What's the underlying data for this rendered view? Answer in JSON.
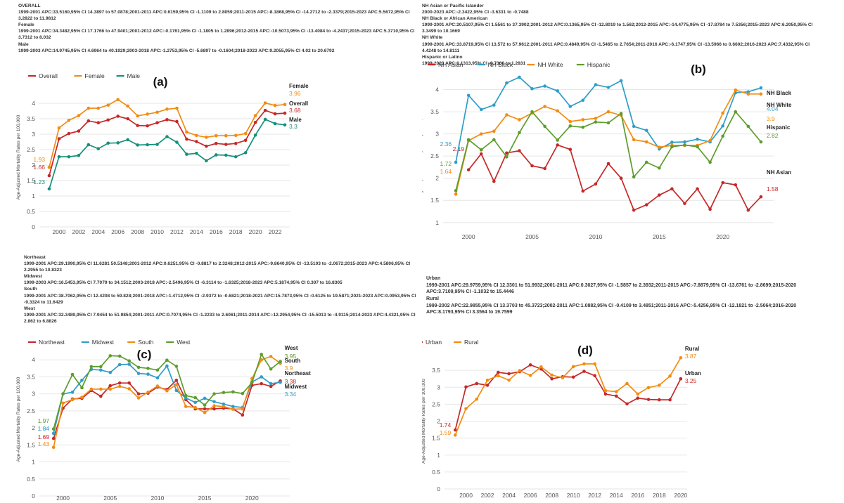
{
  "charts": [
    {
      "id": "a",
      "panel_label": "(a)",
      "notes": [
        "OVERALL",
        "1999-2001 APC:33.5160,95% CI 14.3897 to 57.0878;2001-2011 APC:0.6159,95% CI -1.1109 to 2.8059;2011-2015 APC:-8.1868,95% CI -14.2712 to -2.3379;2015-2023 APC:5.5672,95% CI 3.2822 to 11.9812",
        "Female",
        "1999-2001 APC:34.3482,95% CI 17.1766 to 47.9401;2001-2012 APC:-0.1761,95% CI -1.1805 to 1.2896;2012-2015 APC:-10.5073,95% CI -13.4084 to -4.2437;2015-2023 APC:5.3710,95% CI 3.7312 to 8.032",
        "Male",
        "1999-2003 APC:14.9745,95% CI 4.6964 to 40.1929;2003-2018 APC:-1.2753,95% CI -5.6897 to -0.1604;2018-2023 APC:9.2055,95% CI 4.02 to 20.6792"
      ],
      "chart_data": {
        "type": "line",
        "ylabel": "Age-Adjusted Mortality Rates per 100,000",
        "ylim": [
          0,
          4.5
        ],
        "yticks": [
          "0",
          "0.5",
          "1",
          "1.5",
          "2",
          "2.5",
          "3",
          "3.5",
          "4"
        ],
        "xlim": [
          1998,
          2023.5
        ],
        "xticks": [
          "2000",
          "2002",
          "2004",
          "2006",
          "2008",
          "2010",
          "2012",
          "2014",
          "2016",
          "2018",
          "2020",
          "2022"
        ],
        "x": [
          1999,
          2000,
          2001,
          2002,
          2003,
          2004,
          2005,
          2006,
          2007,
          2008,
          2009,
          2010,
          2011,
          2012,
          2013,
          2014,
          2015,
          2016,
          2017,
          2018,
          2019,
          2020,
          2021,
          2022,
          2023
        ],
        "series": [
          {
            "name": "Overall",
            "color": "#c62828",
            "start_label": "1.66",
            "end_label": "3.68",
            "end_name": "Overall",
            "values": [
              1.66,
              2.85,
              3.02,
              3.1,
              3.43,
              3.37,
              3.46,
              3.58,
              3.5,
              3.28,
              3.27,
              3.37,
              3.47,
              3.41,
              2.84,
              2.76,
              2.61,
              2.7,
              2.67,
              2.7,
              2.8,
              3.38,
              3.77,
              3.66,
              3.68
            ]
          },
          {
            "name": "Female",
            "color": "#f28c12",
            "start_label": "1.93",
            "end_label": "3.96",
            "end_name": "Female",
            "values": [
              1.93,
              3.2,
              3.45,
              3.6,
              3.84,
              3.84,
              3.94,
              4.12,
              3.91,
              3.59,
              3.65,
              3.71,
              3.81,
              3.84,
              3.07,
              2.96,
              2.9,
              2.95,
              2.95,
              2.96,
              3.02,
              3.6,
              4.01,
              3.93,
              3.96
            ]
          },
          {
            "name": "Male",
            "color": "#15907a",
            "start_label": "1.23",
            "end_label": "3.3",
            "end_name": "Male",
            "values": [
              1.23,
              2.27,
              2.27,
              2.31,
              2.66,
              2.53,
              2.71,
              2.72,
              2.82,
              2.65,
              2.66,
              2.67,
              2.92,
              2.74,
              2.35,
              2.38,
              2.14,
              2.33,
              2.32,
              2.27,
              2.4,
              2.97,
              3.48,
              3.34,
              3.3
            ]
          }
        ]
      }
    },
    {
      "id": "b",
      "panel_label": "(b)",
      "notes": [
        "NH Asian or Pacific Islander",
        "2000-2023 APC:-2.3422,95% CI -3.6331 to -0.7488",
        "NH Black or African American",
        "1999-2001 APC:20.5107,95% CI 1.5561 to 37.3902;2001-2012 APC:0.1365,95% CI -12.8019 to 1.562;2012-2015 APC:-14.4775,95% CI -17.8784 to 7.5356;2015-2023 APC:6.2050,95% CI 3.3499 to 10.1669",
        "NH White",
        "1999-2001 APC:33.8719,95% CI 13.572 to 57.9612;2001-2011 APC:0.4849,95% CI -1.5465 to 2.7654;2011-2016 APC:-6.1747,95% CI -13.5966 to 0.6602;2016-2023 APC:7.4332,95% CI 4.4248 to 14.8111",
        "Hispanic or Latino",
        "1999-2023 APC:0.1313,95% CI -0.7306 to 1.2831"
      ],
      "chart_data": {
        "type": "line",
        "ylabel": "Age-Adjusted Mortality Rates per 100,000",
        "ylim": [
          0.6,
          4.5
        ],
        "yticks": [
          "1",
          "1.5",
          "2",
          "2.5",
          "3",
          "3.5",
          "4"
        ],
        "xlim": [
          1998,
          2024
        ],
        "xticks": [
          "2000",
          "2005",
          "2010",
          "2015",
          "2020"
        ],
        "x": [
          1999,
          2000,
          2001,
          2002,
          2003,
          2004,
          2005,
          2006,
          2007,
          2008,
          2009,
          2010,
          2011,
          2012,
          2013,
          2014,
          2015,
          2016,
          2017,
          2018,
          2019,
          2020,
          2021,
          2022,
          2023
        ],
        "series": [
          {
            "name": "NH Asian",
            "color": "#c62828",
            "start_label": "2.19",
            "end_label": "1.58",
            "end_name": "NH Asian",
            "values": [
              null,
              2.19,
              2.55,
              1.93,
              2.57,
              2.62,
              2.28,
              2.22,
              2.75,
              2.65,
              1.71,
              1.87,
              2.33,
              2.0,
              1.28,
              1.4,
              1.62,
              1.76,
              1.43,
              1.76,
              1.3,
              1.9,
              1.85,
              1.28,
              1.58
            ]
          },
          {
            "name": "NH Black",
            "color": "#2e9dc8",
            "start_label": "2.36",
            "end_label": "4.04",
            "end_name": "NH Black",
            "values": [
              2.36,
              3.87,
              3.55,
              3.65,
              4.15,
              4.28,
              4.02,
              4.08,
              3.97,
              3.62,
              3.76,
              4.11,
              4.05,
              4.2,
              3.17,
              3.08,
              2.66,
              2.81,
              2.82,
              2.88,
              2.82,
              3.18,
              3.93,
              3.95,
              4.04
            ]
          },
          {
            "name": "NH White",
            "color": "#f28c12",
            "start_label": "1.64",
            "end_label": "3.9",
            "end_name": "NH White",
            "values": [
              1.64,
              2.85,
              3.0,
              3.06,
              3.43,
              3.32,
              3.47,
              3.62,
              3.52,
              3.28,
              3.32,
              3.35,
              3.5,
              3.42,
              2.87,
              2.82,
              2.7,
              2.74,
              2.74,
              2.74,
              2.85,
              3.47,
              3.99,
              3.9,
              3.9
            ]
          },
          {
            "name": "Hispanic",
            "color": "#5e9c2c",
            "start_label": "1.72",
            "end_label": "2.82",
            "end_name": "Hispanic",
            "values": [
              1.72,
              2.87,
              2.64,
              2.87,
              2.48,
              3.03,
              3.5,
              3.17,
              2.86,
              3.18,
              3.15,
              3.27,
              3.25,
              3.46,
              2.03,
              2.36,
              2.23,
              2.71,
              2.75,
              2.71,
              2.36,
              2.95,
              3.5,
              3.17,
              2.82
            ]
          }
        ]
      }
    },
    {
      "id": "c",
      "panel_label": "(c)",
      "notes": [
        "Northeast",
        "1999-2001 APC:29.1990,95% CI 11.6281 50.5148;2001-2012 APC:0.6251,95% CI -0.8817 to 2.3248;2012-2015 APC:-9.8640,95% CI -13.5103 to -2.0672;2015-2023 APC:4.5806,95% CI 2.2955 to 10.8323",
        "Midwest",
        "1999-2003 APC:16.5453,95% CI 7.7079 to 34.1512;2003-2018 APC:-2.5496,95% CI -6.3114 to -1.6325;2018-2023 APC:5.1874,95% CI 0.307 to 16.8305",
        "South",
        "1999-2001 APC:38.7062,95% CI 12.4208 to 59.828;2001-2018 APC:-1.4712,95% CI -2.9372 to -0.6821;2018-2021 APC:15.7873,95% CI -0.6125 to 19.5871;2021-2023 APC:0.0953,95% CI -9.3324 to 11.6429",
        "West",
        "1999-2001 APC:32.3489,95% CI 7.9454 to 51.9854;2001-2011 APC:0.7074,95% CI -1.2233 to 2.6061;2011-2014 APC:-12.2954,95% CI -15.5013 to -4.9115;2014-2023 APC:4.4321,95% CI 2.862 to 6.8826"
      ],
      "chart_data": {
        "type": "line",
        "ylabel": "Age-Adjusted Mortality Rates per 100,000",
        "ylim": [
          0,
          4.5
        ],
        "yticks": [
          "0",
          "0.5",
          "1",
          "1.5",
          "2",
          "2.5",
          "3",
          "3.5",
          "4"
        ],
        "xlim": [
          1997.5,
          2024
        ],
        "xticks": [
          "2000",
          "2005",
          "2010",
          "2015",
          "2020"
        ],
        "x": [
          1999,
          2000,
          2001,
          2002,
          2003,
          2004,
          2005,
          2006,
          2007,
          2008,
          2009,
          2010,
          2011,
          2012,
          2013,
          2014,
          2015,
          2016,
          2017,
          2018,
          2019,
          2020,
          2021,
          2022,
          2023
        ],
        "series": [
          {
            "name": "Northeast",
            "color": "#c62828",
            "start_label": "1.69",
            "end_label": "3.38",
            "end_name": "Northeast",
            "values": [
              1.69,
              2.58,
              2.85,
              2.87,
              3.1,
              2.93,
              3.24,
              3.32,
              3.32,
              3.0,
              3.02,
              3.2,
              3.13,
              3.4,
              2.83,
              2.56,
              2.56,
              2.56,
              2.58,
              2.56,
              2.38,
              3.25,
              3.3,
              3.22,
              3.38
            ]
          },
          {
            "name": "Midwest",
            "color": "#2e9dc8",
            "start_label": "1.84",
            "end_label": "3.34",
            "end_name": "Midwest",
            "values": [
              1.84,
              3.0,
              3.05,
              3.4,
              3.72,
              3.7,
              3.63,
              3.86,
              3.87,
              3.6,
              3.58,
              3.47,
              3.82,
              3.1,
              2.88,
              2.75,
              2.87,
              2.77,
              2.7,
              2.63,
              2.6,
              3.35,
              3.5,
              3.3,
              3.34
            ]
          },
          {
            "name": "South",
            "color": "#f28c12",
            "start_label": "1.43",
            "end_label": "3.9",
            "end_name": "South",
            "values": [
              1.43,
              2.73,
              2.83,
              2.9,
              3.14,
              3.14,
              3.14,
              3.22,
              3.15,
              2.88,
              3.05,
              3.23,
              3.09,
              3.27,
              2.63,
              2.6,
              2.45,
              2.65,
              2.63,
              2.55,
              2.56,
              3.45,
              4.0,
              4.1,
              3.9
            ]
          },
          {
            "name": "West",
            "color": "#5e9c2c",
            "start_label": "1.97",
            "end_label": "3.95",
            "end_name": "West",
            "values": [
              1.97,
              3.0,
              3.57,
              3.18,
              3.8,
              3.8,
              4.12,
              4.11,
              3.97,
              3.78,
              3.75,
              3.7,
              3.99,
              3.81,
              2.95,
              2.89,
              2.67,
              3.0,
              3.04,
              3.06,
              3.01,
              3.33,
              4.16,
              3.73,
              3.95
            ]
          }
        ]
      }
    },
    {
      "id": "d",
      "panel_label": "(d)",
      "notes": [
        "Urban",
        "1999-2001 APC:29.9759,95% CI 12.3301 to 51.9932;2001-2011 APC:0.3027,95% CI -1.5857 to 2.3932;2011-2015 APC:-7.8879,95% CI -13.6761 to -2.8699;2015-2020 APC:3.7109,95% CI -1.1032 to 15.4446",
        "Rural",
        "1999-2002 APC:22.9855,95% CI 13.3703 to 45.3723;2002-2011 APC:1.0882,95% CI -0.4109 to 3.4851;2011-2016 APC:-5.4256,95% CI -12.1821 to -2.5064;2016-2020 APC:8.1793,95% CI 3.3564 to 19.7599"
      ],
      "chart_data": {
        "type": "line",
        "ylabel": "Age-Adjusted Mortality Rates per 100,000",
        "ylim": [
          0,
          4.0
        ],
        "yticks": [
          "0",
          "0.5",
          "1",
          "1.5",
          "2",
          "2.5",
          "3",
          "3.5"
        ],
        "xlim": [
          1998,
          2020.6
        ],
        "xticks": [
          "2000",
          "2002",
          "2004",
          "2006",
          "2008",
          "2010",
          "2012",
          "2014",
          "2016",
          "2018",
          "2020"
        ],
        "x": [
          1999,
          2000,
          2001,
          2002,
          2003,
          2004,
          2005,
          2006,
          2007,
          2008,
          2009,
          2010,
          2011,
          2012,
          2013,
          2014,
          2015,
          2016,
          2017,
          2018,
          2019,
          2020
        ],
        "series": [
          {
            "name": "Urban",
            "color": "#c62828",
            "start_label": "1.74",
            "end_label": "3.25",
            "end_name": "Urban",
            "values": [
              1.74,
              3.01,
              3.11,
              3.06,
              3.44,
              3.4,
              3.46,
              3.66,
              3.54,
              3.25,
              3.31,
              3.3,
              3.47,
              3.34,
              2.8,
              2.74,
              2.51,
              2.68,
              2.64,
              2.63,
              2.63,
              3.25
            ]
          },
          {
            "name": "Rural",
            "color": "#f28c12",
            "start_label": "1.59",
            "end_label": "3.87",
            "end_name": "Rural",
            "values": [
              1.59,
              2.37,
              2.65,
              3.21,
              3.34,
              3.21,
              3.49,
              3.35,
              3.6,
              3.36,
              3.28,
              3.61,
              3.69,
              3.69,
              2.9,
              2.87,
              3.11,
              2.8,
              2.99,
              3.06,
              3.33,
              3.87
            ]
          }
        ]
      }
    }
  ]
}
